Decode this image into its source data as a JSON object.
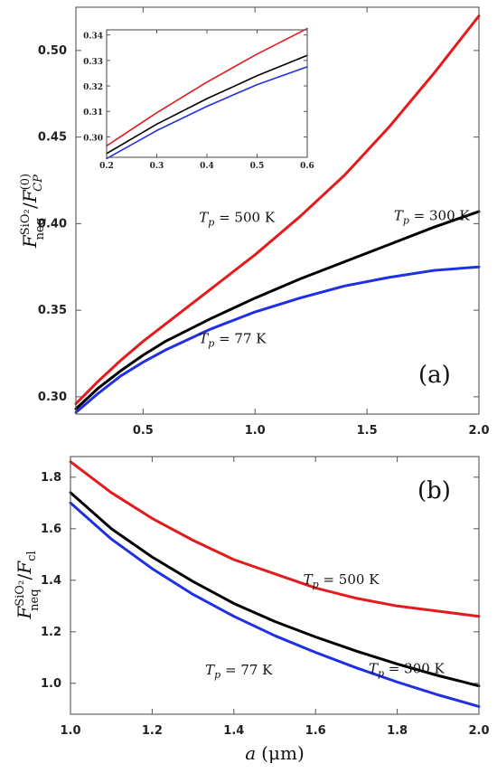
{
  "chart_data": [
    {
      "id": "a",
      "type": "line",
      "panel_label": "(a)",
      "ylabel_main": "F",
      "ylabel_sup": "SiO₂",
      "ylabel_sub": "neq",
      "ylabel_den": "F",
      "ylabel_den_sup": "(0)",
      "ylabel_den_sub": "CP",
      "xlim": [
        0.2,
        2.0
      ],
      "ylim": [
        0.29,
        0.525
      ],
      "xticks": [
        0.5,
        1.0,
        1.5,
        2.0
      ],
      "xtick_labels": [
        "0.5",
        "1.0",
        "1.5",
        "2.0"
      ],
      "yticks": [
        0.3,
        0.35,
        0.4,
        0.45,
        0.5
      ],
      "ytick_labels": [
        "0.30",
        "0.35",
        "0.40",
        "0.45",
        "0.50"
      ],
      "series": [
        {
          "color": "#e41a1c",
          "x": [
            0.2,
            0.3,
            0.4,
            0.5,
            0.6,
            0.8,
            1.0,
            1.2,
            1.4,
            1.6,
            1.8,
            2.0
          ],
          "y": [
            0.296,
            0.309,
            0.321,
            0.332,
            0.342,
            0.362,
            0.382,
            0.404,
            0.428,
            0.456,
            0.487,
            0.52
          ]
        },
        {
          "color": "#000000",
          "x": [
            0.2,
            0.3,
            0.4,
            0.5,
            0.6,
            0.8,
            1.0,
            1.2,
            1.4,
            1.6,
            1.8,
            2.0
          ],
          "y": [
            0.293,
            0.305,
            0.315,
            0.324,
            0.332,
            0.345,
            0.357,
            0.368,
            0.378,
            0.388,
            0.398,
            0.407
          ]
        },
        {
          "color": "#1f2fe6",
          "x": [
            0.2,
            0.3,
            0.4,
            0.5,
            0.6,
            0.8,
            1.0,
            1.2,
            1.4,
            1.6,
            1.8,
            2.0
          ],
          "y": [
            0.291,
            0.302,
            0.312,
            0.32,
            0.327,
            0.339,
            0.349,
            0.357,
            0.364,
            0.369,
            0.373,
            0.375
          ]
        }
      ],
      "annotations": [
        {
          "T": "T",
          "sub": "p",
          "value": " = 500 K",
          "x": 0.75,
          "y": 0.401
        },
        {
          "T": "T",
          "sub": "p",
          "value": " = 300 K",
          "x": 1.62,
          "y": 0.402
        },
        {
          "T": "T",
          "sub": "p",
          "value": " = 77 K",
          "x": 0.75,
          "y": 0.331
        }
      ],
      "inset": {
        "xlim": [
          0.2,
          0.6
        ],
        "ylim": [
          0.292,
          0.342
        ],
        "xticks": [
          0.2,
          0.3,
          0.4,
          0.5,
          0.6
        ],
        "xtick_labels": [
          "0.2",
          "0.3",
          "0.4",
          "0.5",
          "0.6"
        ],
        "yticks": [
          0.3,
          0.31,
          0.32,
          0.33,
          0.34
        ],
        "ytick_labels": [
          "0.30",
          "0.31",
          "0.32",
          "0.33",
          "0.34"
        ],
        "series": [
          {
            "color": "#e41a1c",
            "x": [
              0.2,
              0.3,
              0.4,
              0.5,
              0.6
            ],
            "y": [
              0.2965,
              0.3095,
              0.3215,
              0.3325,
              0.3425
            ]
          },
          {
            "color": "#000000",
            "x": [
              0.2,
              0.3,
              0.4,
              0.5,
              0.6
            ],
            "y": [
              0.2935,
              0.305,
              0.315,
              0.324,
              0.332
            ]
          },
          {
            "color": "#1f2fe6",
            "x": [
              0.2,
              0.3,
              0.4,
              0.5,
              0.6
            ],
            "y": [
              0.2915,
              0.3025,
              0.312,
              0.3205,
              0.3275
            ]
          }
        ]
      }
    },
    {
      "id": "b",
      "type": "line",
      "panel_label": "(b)",
      "ylabel_main": "F",
      "ylabel_sup": "SiO₂",
      "ylabel_sub": "neq",
      "ylabel_den": "F",
      "ylabel_den_sub": "cl",
      "xlabel_sym": "a",
      "xlabel_unit": "(μm)",
      "xlim": [
        1.0,
        2.0
      ],
      "ylim": [
        0.88,
        1.88
      ],
      "xticks": [
        1.0,
        1.2,
        1.4,
        1.6,
        1.8,
        2.0
      ],
      "xtick_labels": [
        "1.0",
        "1.2",
        "1.4",
        "1.6",
        "1.8",
        "2.0"
      ],
      "yticks": [
        1.0,
        1.2,
        1.4,
        1.6,
        1.8
      ],
      "ytick_labels": [
        "1.0",
        "1.2",
        "1.4",
        "1.6",
        "1.8"
      ],
      "series": [
        {
          "color": "#e41a1c",
          "x": [
            1.0,
            1.1,
            1.2,
            1.3,
            1.4,
            1.5,
            1.6,
            1.7,
            1.8,
            1.9,
            2.0
          ],
          "y": [
            1.86,
            1.74,
            1.64,
            1.555,
            1.48,
            1.425,
            1.37,
            1.33,
            1.3,
            1.28,
            1.26
          ]
        },
        {
          "color": "#000000",
          "x": [
            1.0,
            1.1,
            1.2,
            1.3,
            1.4,
            1.5,
            1.6,
            1.7,
            1.8,
            1.9,
            2.0
          ],
          "y": [
            1.74,
            1.6,
            1.49,
            1.395,
            1.31,
            1.24,
            1.18,
            1.125,
            1.075,
            1.03,
            0.99
          ]
        },
        {
          "color": "#1f2fe6",
          "x": [
            1.0,
            1.1,
            1.2,
            1.3,
            1.4,
            1.5,
            1.6,
            1.7,
            1.8,
            1.9,
            2.0
          ],
          "y": [
            1.7,
            1.56,
            1.445,
            1.345,
            1.26,
            1.185,
            1.12,
            1.06,
            1.005,
            0.955,
            0.91
          ]
        }
      ],
      "annotations": [
        {
          "T": "T",
          "sub": "p",
          "value": " = 500 K",
          "x": 1.57,
          "y": 1.385
        },
        {
          "T": "T",
          "sub": "p",
          "value": " = 300 K",
          "x": 1.73,
          "y": 1.04
        },
        {
          "T": "T",
          "sub": "p",
          "value": " = 77 K",
          "x": 1.33,
          "y": 1.035
        }
      ]
    }
  ]
}
